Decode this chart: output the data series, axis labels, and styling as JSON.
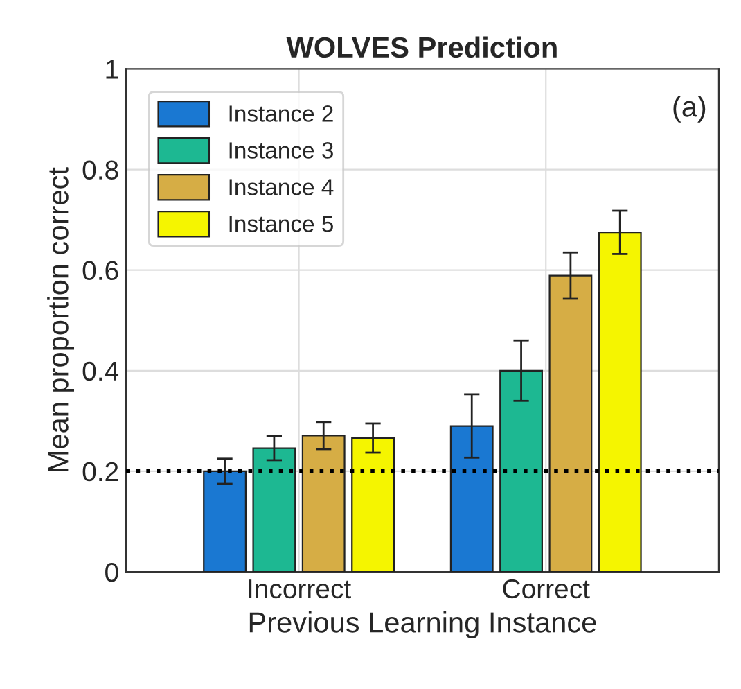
{
  "chart_data": {
    "type": "bar",
    "title": "WOLVES Prediction",
    "xlabel": "Previous Learning Instance",
    "ylabel": "Mean proportion correct",
    "categories": [
      "Incorrect",
      "Correct"
    ],
    "series": [
      {
        "name": "Instance 2",
        "color": "#1a78d2",
        "values": [
          0.2,
          0.29
        ],
        "errors": [
          0.025,
          0.063
        ]
      },
      {
        "name": "Instance 3",
        "color": "#1db892",
        "values": [
          0.246,
          0.4
        ],
        "errors": [
          0.024,
          0.06
        ]
      },
      {
        "name": "Instance 4",
        "color": "#d6ad45",
        "values": [
          0.271,
          0.589
        ],
        "errors": [
          0.027,
          0.046
        ]
      },
      {
        "name": "Instance 5",
        "color": "#f5f500",
        "values": [
          0.266,
          0.675
        ],
        "errors": [
          0.029,
          0.043
        ]
      }
    ],
    "ylim": [
      0,
      1
    ],
    "yticks": [
      0,
      0.2,
      0.4,
      0.6,
      0.8,
      1
    ],
    "ref_lines": [
      {
        "axis": "y",
        "value": 0.2,
        "label": null,
        "color": "#000000",
        "line_style": "dotted"
      }
    ],
    "annotations": [
      "(a)"
    ],
    "grid": true,
    "legend": "top left"
  }
}
